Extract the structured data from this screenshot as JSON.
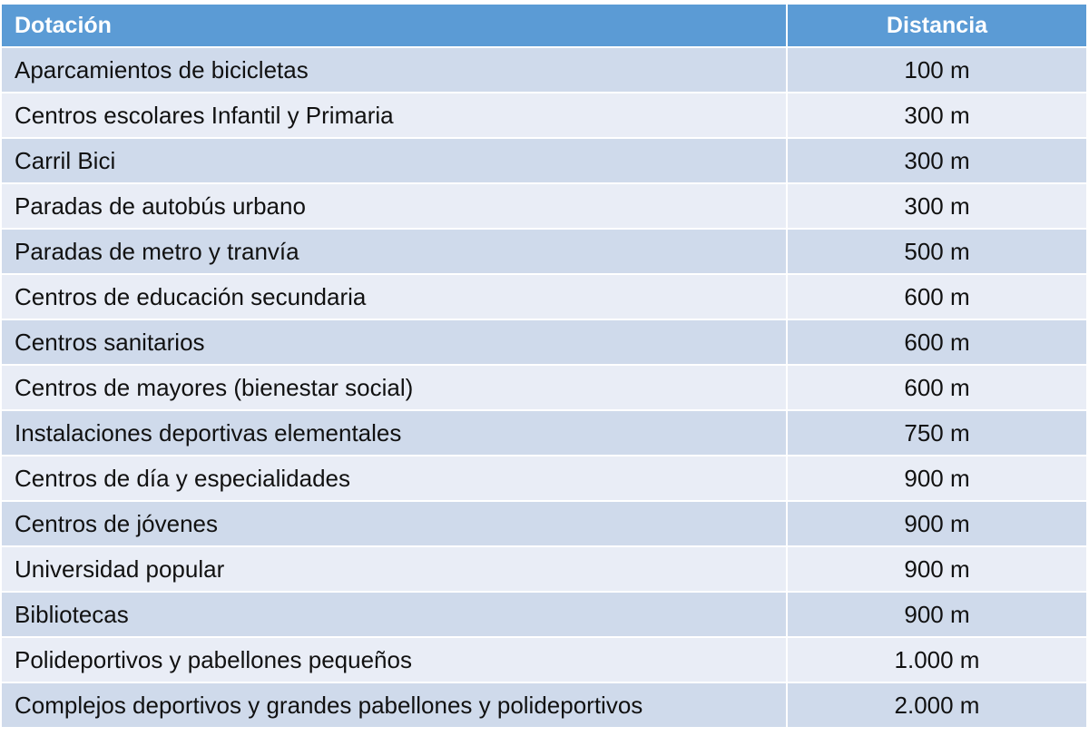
{
  "header": {
    "col1": "Dotación",
    "col2": "Distancia"
  },
  "rows": [
    {
      "name": "Aparcamientos de bicicletas",
      "distance": "100 m"
    },
    {
      "name": "Centros escolares Infantil y Primaria",
      "distance": "300 m"
    },
    {
      "name": "Carril Bici",
      "distance": "300 m"
    },
    {
      "name": "Paradas de autobús urbano",
      "distance": "300 m"
    },
    {
      "name": "Paradas de metro y tranvía",
      "distance": "500 m"
    },
    {
      "name": "Centros de educación secundaria",
      "distance": "600 m"
    },
    {
      "name": "Centros sanitarios",
      "distance": "600 m"
    },
    {
      "name": "Centros de mayores (bienestar social)",
      "distance": "600 m"
    },
    {
      "name": "Instalaciones deportivas elementales",
      "distance": "750 m"
    },
    {
      "name": "Centros de día y especialidades",
      "distance": "900 m"
    },
    {
      "name": "Centros de jóvenes",
      "distance": "900 m"
    },
    {
      "name": "Universidad popular",
      "distance": "900 m"
    },
    {
      "name": "Bibliotecas",
      "distance": "900 m"
    },
    {
      "name": "Polideportivos y pabellones pequeños",
      "distance": "1.000 m"
    },
    {
      "name": "Complejos deportivos y grandes pabellones y polideportivos",
      "distance": "2.000 m"
    }
  ],
  "colors": {
    "header_bg": "#5b9bd5",
    "row_dark": "#cfdaeb",
    "row_light": "#e9edf6"
  }
}
